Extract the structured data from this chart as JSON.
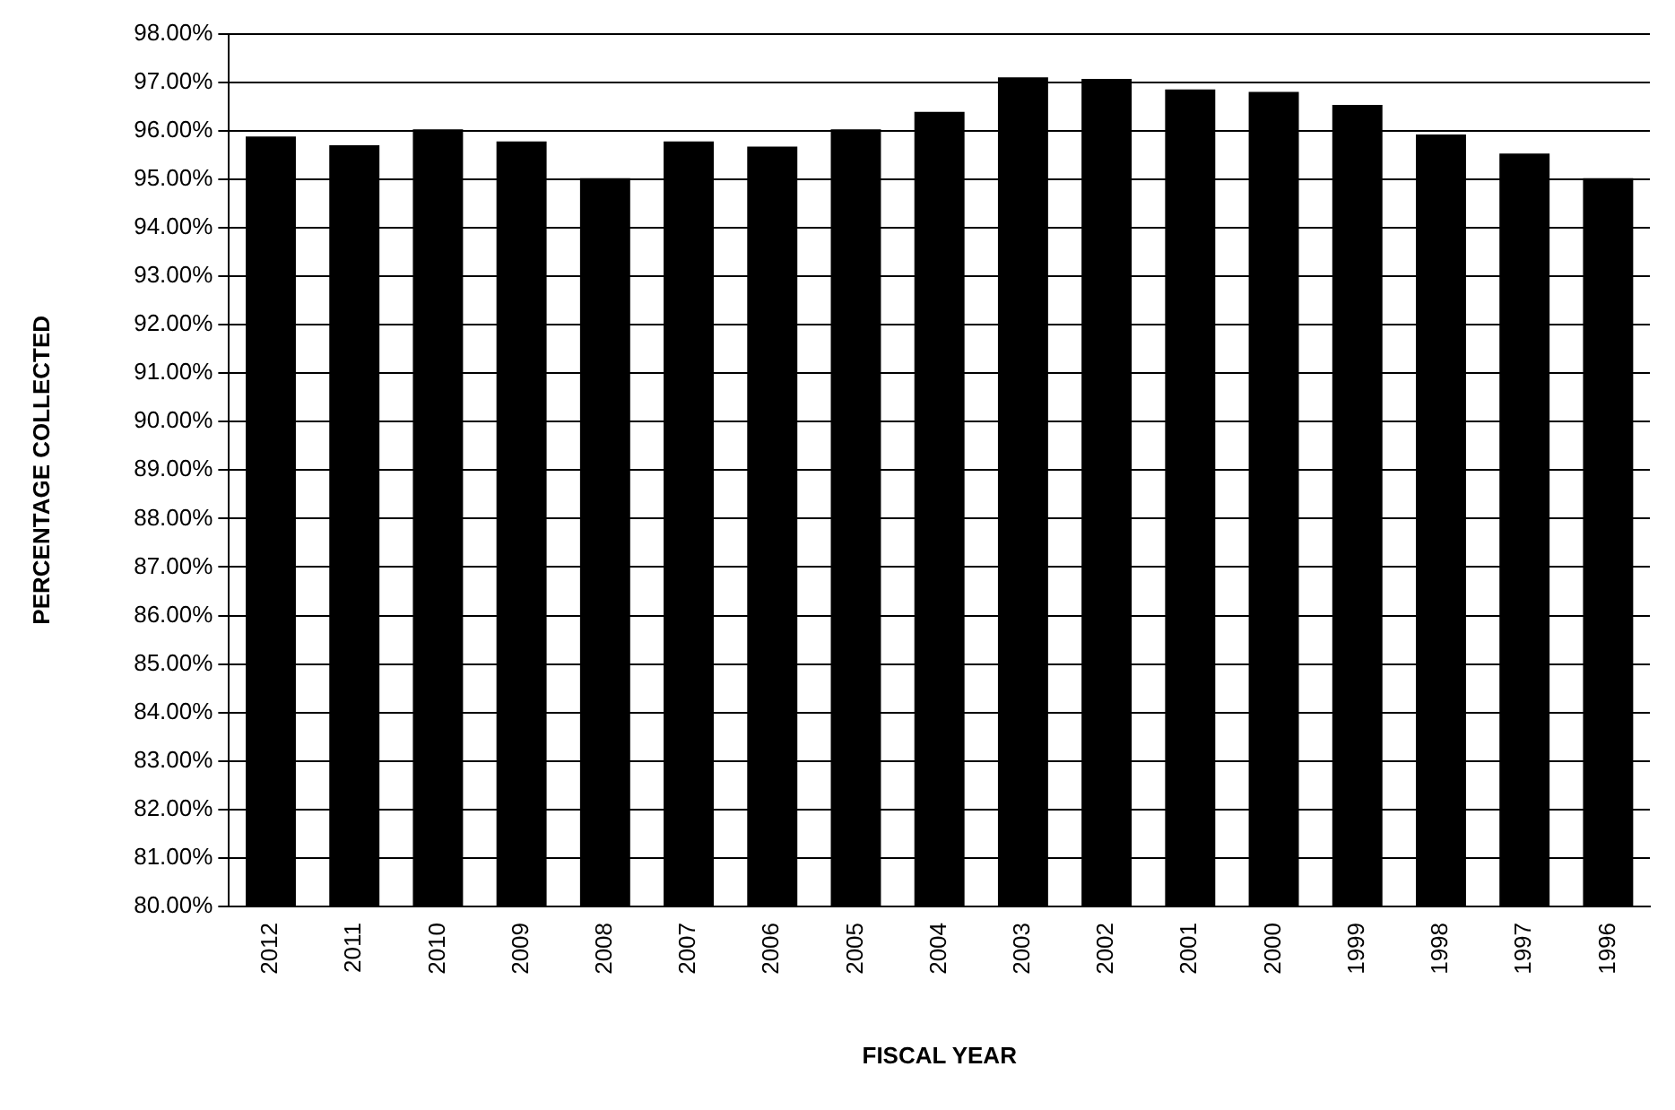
{
  "chart_data": {
    "type": "bar",
    "xlabel": "FISCAL YEAR",
    "ylabel": "PERCENTAGE COLLECTED",
    "categories": [
      "2012",
      "2011",
      "2010",
      "2009",
      "2008",
      "2007",
      "2006",
      "2005",
      "2004",
      "2003",
      "2002",
      "2001",
      "2000",
      "1999",
      "1998",
      "1997",
      "1996"
    ],
    "values": [
      95.88,
      95.7,
      96.03,
      95.78,
      95.02,
      95.78,
      95.67,
      96.03,
      96.39,
      97.1,
      97.07,
      96.85,
      96.8,
      96.53,
      95.92,
      95.53,
      95.02
    ],
    "color": "#000000",
    "ylim": [
      80,
      98
    ],
    "yticks": [
      {
        "value": 80,
        "label": "80.00%"
      },
      {
        "value": 81,
        "label": "81.00%"
      },
      {
        "value": 82,
        "label": "82.00%"
      },
      {
        "value": 83,
        "label": "83.00%"
      },
      {
        "value": 84,
        "label": "84.00%"
      },
      {
        "value": 85,
        "label": "85.00%"
      },
      {
        "value": 86,
        "label": "86.00%"
      },
      {
        "value": 87,
        "label": "87.00%"
      },
      {
        "value": 88,
        "label": "88.00%"
      },
      {
        "value": 89,
        "label": "89.00%"
      },
      {
        "value": 90,
        "label": "90.00%"
      },
      {
        "value": 91,
        "label": "91.00%"
      },
      {
        "value": 92,
        "label": "92.00%"
      },
      {
        "value": 93,
        "label": "93.00%"
      },
      {
        "value": 94,
        "label": "94.00%"
      },
      {
        "value": 95,
        "label": "95.00%"
      },
      {
        "value": 96,
        "label": "96.00%"
      },
      {
        "value": 97,
        "label": "97.00%"
      },
      {
        "value": 98,
        "label": "98.00%"
      }
    ],
    "grid": "y"
  }
}
